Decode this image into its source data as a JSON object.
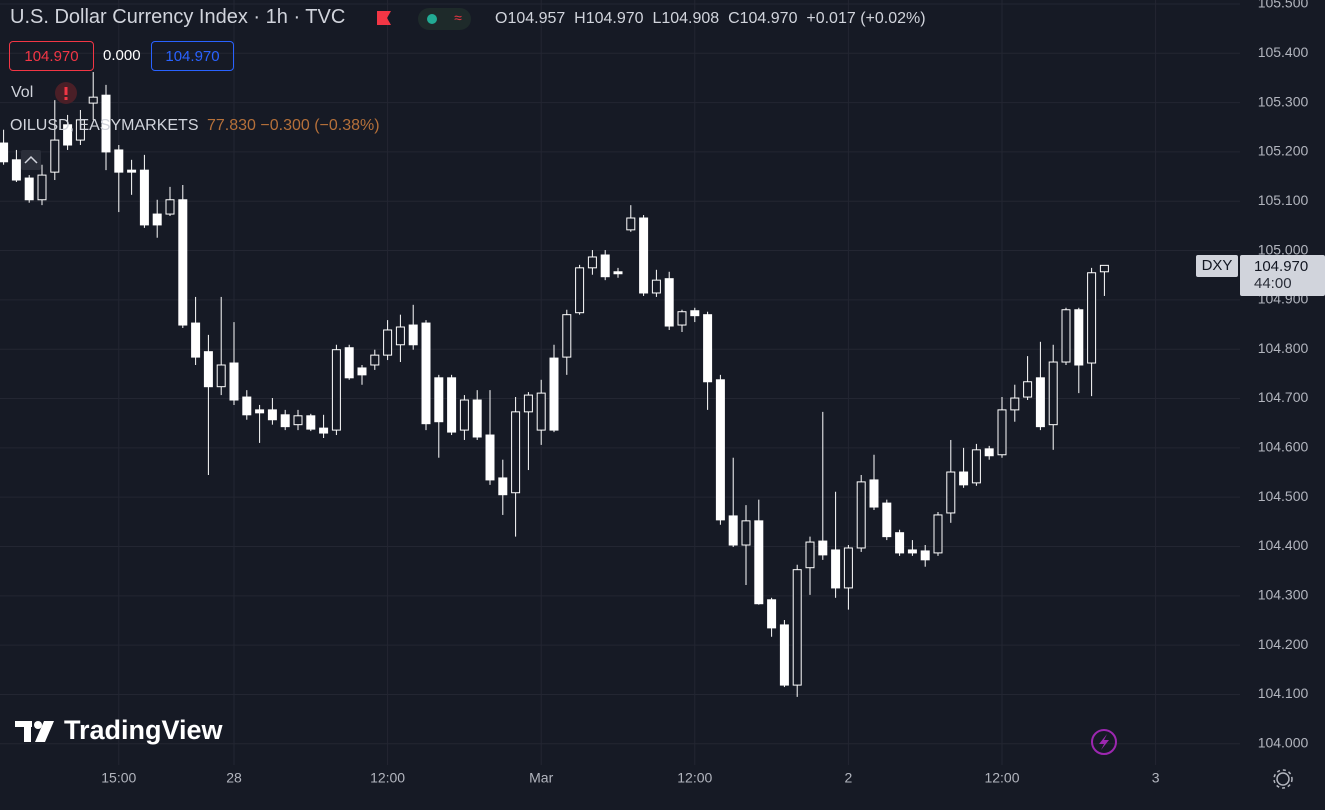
{
  "chart_data": {
    "type": "candlestick",
    "title": "U.S. Dollar Currency Index · 1h · TVC",
    "categories": [
      null,
      null,
      null,
      null,
      null,
      null,
      null,
      null,
      null,
      "15:00",
      null,
      null,
      null,
      null,
      null,
      null,
      null,
      null,
      "28",
      null,
      null,
      null,
      null,
      null,
      null,
      null,
      null,
      null,
      null,
      null,
      "12:00",
      null,
      null,
      null,
      null,
      null,
      null,
      null,
      null,
      null,
      null,
      null,
      "Mar",
      null,
      null,
      null,
      null,
      null,
      null,
      null,
      null,
      null,
      null,
      null,
      "12:00",
      null,
      null,
      null,
      null,
      null,
      null,
      null,
      null,
      null,
      null,
      null,
      "2",
      null,
      null,
      null,
      null,
      null,
      null,
      null,
      null,
      null,
      null,
      null,
      "12:00",
      null,
      null,
      null,
      null,
      null,
      null,
      null,
      null,
      null,
      null,
      null,
      "3"
    ],
    "open": [
      105.218,
      105.184,
      105.147,
      105.103,
      105.159,
      105.255,
      105.224,
      105.299,
      105.315,
      105.204,
      105.163,
      105.163,
      105.074,
      105.074,
      105.103,
      104.853,
      104.795,
      104.724,
      104.772,
      104.703,
      104.677,
      104.677,
      104.667,
      104.647,
      104.665,
      104.64,
      104.636,
      104.803,
      104.762,
      104.768,
      104.788,
      104.809,
      104.849,
      104.853,
      104.742,
      104.742,
      104.636,
      104.697,
      104.626,
      104.539,
      104.509,
      104.673,
      104.636,
      104.782,
      104.784,
      104.874,
      104.965,
      104.991,
      104.957,
      105.042,
      105.066,
      104.914,
      104.943,
      104.849,
      104.878,
      104.87,
      104.738,
      104.462,
      104.403,
      104.452,
      104.292,
      104.241,
      104.119,
      104.357,
      104.411,
      104.393,
      104.316,
      104.397,
      104.535,
      104.488,
      104.428,
      104.393,
      104.391,
      104.387,
      104.468,
      104.551,
      104.529,
      104.598,
      104.586,
      104.677,
      104.703,
      104.742,
      104.647,
      104.774,
      104.88,
      104.772,
      104.957,
      null,
      null,
      null,
      null
    ],
    "high": [
      105.245,
      105.204,
      105.153,
      105.174,
      105.305,
      105.275,
      105.285,
      105.362,
      105.336,
      105.214,
      105.184,
      105.194,
      105.103,
      105.129,
      105.133,
      104.906,
      104.829,
      104.906,
      104.855,
      104.717,
      104.687,
      104.701,
      104.677,
      104.677,
      104.669,
      104.667,
      104.809,
      104.809,
      104.768,
      104.799,
      104.859,
      104.87,
      104.89,
      104.859,
      104.748,
      104.748,
      104.707,
      104.717,
      104.717,
      104.576,
      104.703,
      104.713,
      104.738,
      104.809,
      104.88,
      104.971,
      105.001,
      105.001,
      104.965,
      105.092,
      105.072,
      104.961,
      104.957,
      104.88,
      104.884,
      104.876,
      104.748,
      104.58,
      104.484,
      104.495,
      104.296,
      104.251,
      104.363,
      104.42,
      104.673,
      104.511,
      104.403,
      104.545,
      104.586,
      104.495,
      104.434,
      104.413,
      104.403,
      104.47,
      104.616,
      104.6,
      104.608,
      104.604,
      104.703,
      104.728,
      104.786,
      104.815,
      104.809,
      104.884,
      104.884,
      104.965,
      104.97,
      null,
      null,
      null,
      null
    ],
    "low": [
      105.174,
      105.139,
      105.097,
      105.092,
      105.143,
      105.204,
      105.214,
      105.265,
      105.163,
      105.078,
      105.113,
      105.046,
      105.026,
      105.07,
      104.843,
      104.768,
      104.545,
      104.707,
      104.687,
      104.657,
      104.61,
      104.647,
      104.636,
      104.636,
      104.634,
      104.62,
      104.626,
      104.738,
      104.728,
      104.758,
      104.778,
      104.774,
      104.799,
      104.636,
      104.58,
      104.626,
      104.616,
      104.616,
      104.525,
      104.464,
      104.42,
      104.555,
      104.606,
      104.632,
      104.748,
      104.87,
      104.951,
      104.94,
      104.945,
      105.038,
      104.908,
      104.906,
      104.839,
      104.835,
      104.855,
      104.677,
      104.444,
      104.399,
      104.322,
      104.282,
      104.217,
      104.115,
      104.095,
      104.302,
      104.373,
      104.296,
      104.272,
      104.389,
      104.474,
      104.413,
      104.381,
      104.381,
      104.359,
      104.381,
      104.448,
      104.519,
      104.523,
      104.576,
      104.58,
      104.653,
      104.697,
      104.636,
      104.596,
      104.768,
      104.711,
      104.705,
      104.908,
      null,
      null,
      null,
      null
    ],
    "close": [
      105.18,
      105.143,
      105.103,
      105.153,
      105.224,
      105.214,
      105.265,
      105.311,
      105.2,
      105.159,
      105.159,
      105.052,
      105.052,
      105.103,
      104.849,
      104.784,
      104.724,
      104.768,
      104.697,
      104.667,
      104.671,
      104.657,
      104.643,
      104.665,
      104.638,
      104.63,
      104.799,
      104.742,
      104.748,
      104.788,
      104.839,
      104.845,
      104.809,
      104.649,
      104.653,
      104.632,
      104.697,
      104.622,
      104.535,
      104.505,
      104.673,
      104.707,
      104.711,
      104.636,
      104.87,
      104.965,
      104.987,
      104.947,
      104.953,
      105.066,
      104.914,
      104.94,
      104.847,
      104.876,
      104.868,
      104.734,
      104.454,
      104.403,
      104.452,
      104.284,
      104.235,
      104.119,
      104.353,
      104.409,
      104.383,
      104.316,
      104.397,
      104.531,
      104.48,
      104.42,
      104.387,
      104.387,
      104.373,
      104.464,
      104.551,
      104.525,
      104.596,
      104.584,
      104.677,
      104.701,
      104.734,
      104.643,
      104.774,
      104.88,
      104.768,
      104.955,
      104.97,
      null,
      null,
      null,
      null
    ],
    "ylim": [
      103.957,
      105.508
    ],
    "yticks": [
      {
        "value": 104.0,
        "label": "104.000"
      },
      {
        "value": 104.1,
        "label": "104.100"
      },
      {
        "value": 104.2,
        "label": "104.200"
      },
      {
        "value": 104.3,
        "label": "104.300"
      },
      {
        "value": 104.4,
        "label": "104.400"
      },
      {
        "value": 104.5,
        "label": "104.500"
      },
      {
        "value": 104.6,
        "label": "104.600"
      },
      {
        "value": 104.7,
        "label": "104.700"
      },
      {
        "value": 104.8,
        "label": "104.800"
      },
      {
        "value": 104.9,
        "label": "104.900"
      },
      {
        "value": 105.0,
        "label": "105.000"
      },
      {
        "value": 105.1,
        "label": "105.100"
      },
      {
        "value": 105.2,
        "label": "105.200"
      },
      {
        "value": 105.3,
        "label": "105.300"
      },
      {
        "value": 105.4,
        "label": "105.400"
      },
      {
        "value": 105.5,
        "label": "105.500"
      }
    ],
    "grid": true,
    "up_color": "#ffffff",
    "down_color": "#ffffff",
    "up_hollow": true
  },
  "ui": {
    "ohlc": {
      "open": "O104.957",
      "high": "H104.970",
      "low": "L104.908",
      "close": "C104.970",
      "change": "+0.017 (+0.02%)"
    },
    "sell_price": "104.970",
    "spread": "0.000",
    "buy_price": "104.970",
    "volume_label": "Vol",
    "compare_symbol": "OILUSD, EASYMARKETS",
    "compare_quote": "77.830 −0.300 (−0.38%)",
    "price_tag": {
      "symbol": "DXY",
      "price": "104.970",
      "countdown": "44:00"
    },
    "logo": "TradingView"
  }
}
